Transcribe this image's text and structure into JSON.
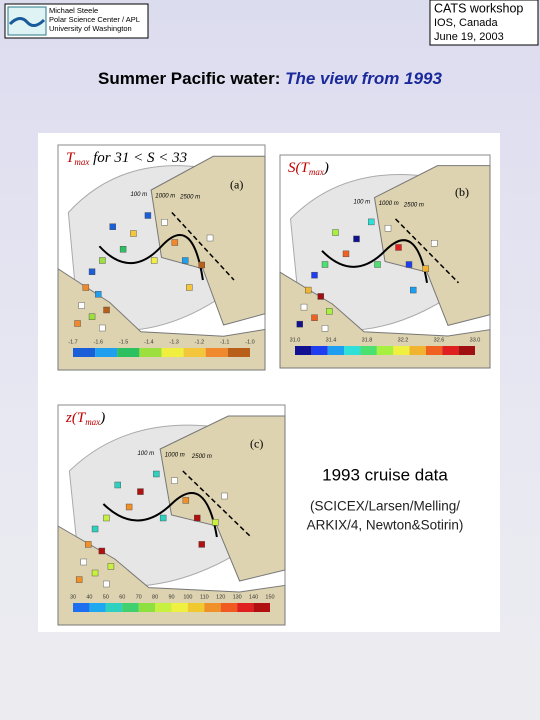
{
  "header": {
    "left_lines": [
      "Michael Steele",
      "Polar Science Center / APL",
      "University of Washington"
    ],
    "right_lines": [
      "CATS workshop",
      "IOS, Canada",
      "June 19, 2003"
    ]
  },
  "title": {
    "main": "Summer Pacific water: ",
    "italic": "The view from 1993"
  },
  "panels": [
    {
      "title_prefix": "T",
      "title_sub": "max",
      "title_suffix": " for 31 < S < 33",
      "label": "(a)",
      "depth_labels": [
        "100 m",
        "1000 m",
        "2500 m"
      ],
      "colorbar": [
        "-1.7",
        "-1.6",
        "-1.5",
        "-1.4",
        "-1.3",
        "-1.2",
        "-1.1",
        "-1.0"
      ]
    },
    {
      "title_prefix": "S(T",
      "title_sub": "max",
      "title_suffix": ")",
      "label": "(b)",
      "depth_labels": [
        "100 m",
        "1000 m",
        "2500 m"
      ],
      "colorbar": [
        "31.0",
        "31.4",
        "31.8",
        "32.2",
        "32.6",
        "33.0"
      ]
    },
    {
      "title_prefix": "z(T",
      "title_sub": "max",
      "title_suffix": ")",
      "label": "(c)",
      "depth_labels": [
        "100 m",
        "1000 m",
        "2500 m"
      ],
      "colorbar": [
        "30",
        "40",
        "50",
        "60",
        "70",
        "80",
        "90",
        "100",
        "110",
        "120",
        "130",
        "140",
        "150"
      ]
    }
  ],
  "note": {
    "heading": "1993 cruise data",
    "lines": [
      "(SCICEX/Larsen/Melling/",
      "ARKIX/4, Newton&Sotirin)"
    ]
  }
}
